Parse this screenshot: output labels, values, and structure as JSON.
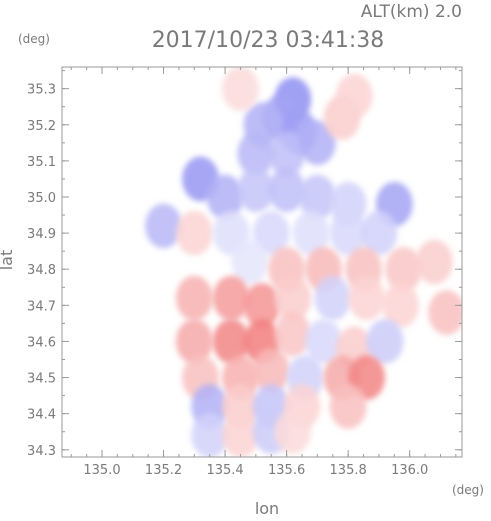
{
  "chart_data": {
    "type": "heatmap",
    "title": "2017/10/23 03:41:38",
    "subtitle": "ALT(km) 2.0",
    "xlabel": "lon",
    "ylabel": "lat",
    "x_unit": "(deg)",
    "y_unit": "(deg)",
    "xlim": [
      134.87,
      136.17
    ],
    "ylim": [
      34.28,
      35.36
    ],
    "x_ticks": [
      135.0,
      135.2,
      135.4,
      135.6,
      135.8,
      136.0
    ],
    "y_ticks": [
      34.3,
      34.4,
      34.5,
      34.6,
      34.7,
      34.8,
      34.9,
      35.0,
      35.1,
      35.2,
      35.3
    ],
    "grid": false,
    "colormap": {
      "negative": "#7c7cf0",
      "zero": "#ffffff",
      "positive": "#f07070"
    },
    "cells": [
      {
        "lon": 135.62,
        "lat": 35.27,
        "value": -0.85
      },
      {
        "lon": 135.58,
        "lat": 35.22,
        "value": -0.7
      },
      {
        "lon": 135.64,
        "lat": 35.18,
        "value": -0.75
      },
      {
        "lon": 135.52,
        "lat": 35.2,
        "value": -0.6
      },
      {
        "lon": 135.5,
        "lat": 35.12,
        "value": -0.55
      },
      {
        "lon": 135.6,
        "lat": 35.12,
        "value": -0.5
      },
      {
        "lon": 135.7,
        "lat": 35.15,
        "value": -0.6
      },
      {
        "lon": 135.78,
        "lat": 35.22,
        "value": 0.35
      },
      {
        "lon": 135.82,
        "lat": 35.28,
        "value": 0.3
      },
      {
        "lon": 135.45,
        "lat": 35.3,
        "value": 0.25
      },
      {
        "lon": 135.32,
        "lat": 35.05,
        "value": -0.8
      },
      {
        "lon": 135.4,
        "lat": 35.0,
        "value": -0.6
      },
      {
        "lon": 135.5,
        "lat": 35.02,
        "value": -0.45
      },
      {
        "lon": 135.6,
        "lat": 35.02,
        "value": -0.5
      },
      {
        "lon": 135.7,
        "lat": 35.0,
        "value": -0.45
      },
      {
        "lon": 135.8,
        "lat": 34.98,
        "value": -0.35
      },
      {
        "lon": 135.95,
        "lat": 34.98,
        "value": -0.7
      },
      {
        "lon": 135.2,
        "lat": 34.92,
        "value": -0.55
      },
      {
        "lon": 135.3,
        "lat": 34.9,
        "value": 0.3
      },
      {
        "lon": 135.42,
        "lat": 34.9,
        "value": -0.25
      },
      {
        "lon": 135.55,
        "lat": 34.9,
        "value": -0.3
      },
      {
        "lon": 135.68,
        "lat": 34.9,
        "value": -0.25
      },
      {
        "lon": 135.8,
        "lat": 34.9,
        "value": -0.3
      },
      {
        "lon": 135.9,
        "lat": 34.9,
        "value": -0.35
      },
      {
        "lon": 135.48,
        "lat": 34.82,
        "value": -0.2
      },
      {
        "lon": 135.6,
        "lat": 34.8,
        "value": 0.45
      },
      {
        "lon": 135.72,
        "lat": 34.8,
        "value": 0.5
      },
      {
        "lon": 135.85,
        "lat": 34.8,
        "value": 0.45
      },
      {
        "lon": 135.98,
        "lat": 34.8,
        "value": 0.4
      },
      {
        "lon": 136.08,
        "lat": 34.82,
        "value": 0.35
      },
      {
        "lon": 135.3,
        "lat": 34.72,
        "value": 0.55
      },
      {
        "lon": 135.42,
        "lat": 34.72,
        "value": 0.7
      },
      {
        "lon": 135.52,
        "lat": 34.7,
        "value": 0.75
      },
      {
        "lon": 135.62,
        "lat": 34.72,
        "value": 0.35
      },
      {
        "lon": 135.75,
        "lat": 34.72,
        "value": -0.35
      },
      {
        "lon": 135.86,
        "lat": 34.72,
        "value": 0.3
      },
      {
        "lon": 135.97,
        "lat": 34.7,
        "value": 0.3
      },
      {
        "lon": 136.12,
        "lat": 34.68,
        "value": 0.45
      },
      {
        "lon": 135.3,
        "lat": 34.6,
        "value": 0.6
      },
      {
        "lon": 135.42,
        "lat": 34.6,
        "value": 0.85
      },
      {
        "lon": 135.52,
        "lat": 34.6,
        "value": 0.9
      },
      {
        "lon": 135.62,
        "lat": 34.62,
        "value": 0.4
      },
      {
        "lon": 135.72,
        "lat": 34.6,
        "value": -0.3
      },
      {
        "lon": 135.82,
        "lat": 34.58,
        "value": 0.35
      },
      {
        "lon": 135.92,
        "lat": 34.6,
        "value": -0.4
      },
      {
        "lon": 135.32,
        "lat": 34.5,
        "value": 0.45
      },
      {
        "lon": 135.45,
        "lat": 34.5,
        "value": 0.55
      },
      {
        "lon": 135.55,
        "lat": 34.52,
        "value": 0.5
      },
      {
        "lon": 135.66,
        "lat": 34.5,
        "value": -0.35
      },
      {
        "lon": 135.78,
        "lat": 34.5,
        "value": 0.6
      },
      {
        "lon": 135.86,
        "lat": 34.5,
        "value": 0.85
      },
      {
        "lon": 135.35,
        "lat": 34.42,
        "value": -0.6
      },
      {
        "lon": 135.45,
        "lat": 34.42,
        "value": 0.35
      },
      {
        "lon": 135.55,
        "lat": 34.42,
        "value": -0.45
      },
      {
        "lon": 135.65,
        "lat": 34.42,
        "value": 0.3
      },
      {
        "lon": 135.8,
        "lat": 34.42,
        "value": 0.45
      },
      {
        "lon": 135.35,
        "lat": 34.34,
        "value": -0.35
      },
      {
        "lon": 135.45,
        "lat": 34.34,
        "value": 0.3
      },
      {
        "lon": 135.55,
        "lat": 34.35,
        "value": -0.4
      },
      {
        "lon": 135.62,
        "lat": 34.35,
        "value": 0.25
      }
    ]
  }
}
